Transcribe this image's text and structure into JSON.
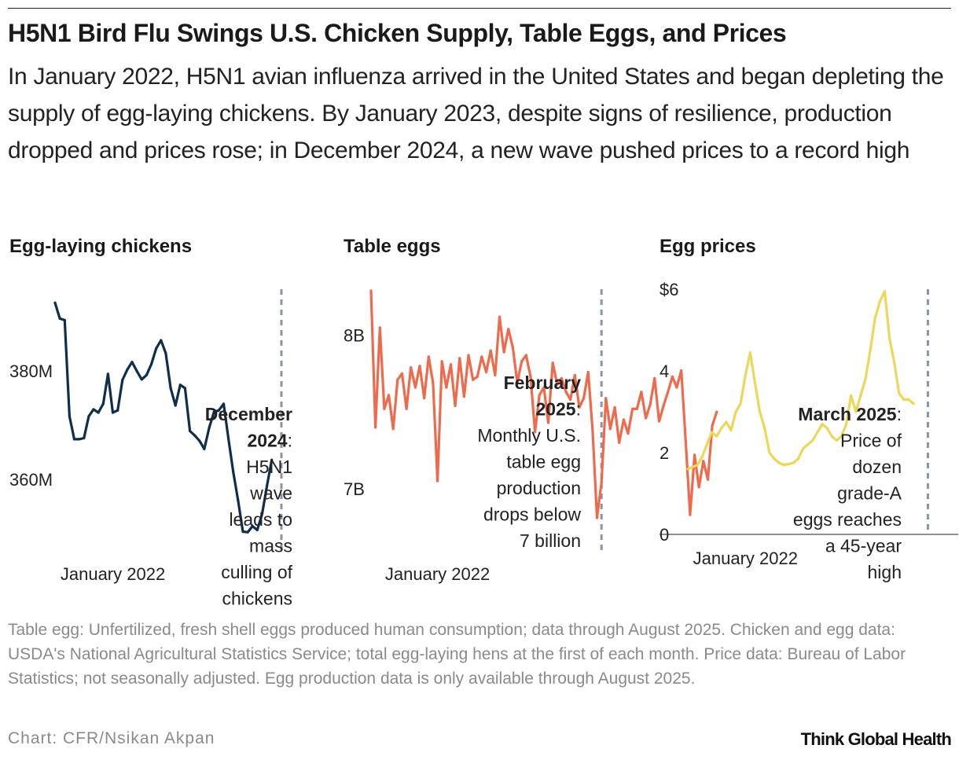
{
  "title": "H5N1 Bird Flu Swings U.S. Chicken Supply, Table Eggs, and Prices",
  "subtitle": "In January 2022, H5N1 avian influenza arrived in the United States and began depleting the supply of egg-laying chickens. By January 2023, despite signs of resilience, production dropped and prices rose; in December 2024, a new wave pushed prices to a record high",
  "footnote": "Table egg: Unfertilized, fresh shell eggs produced human consumption; data through August 2025. Chicken and egg data: USDA's National Agricultural Statistics Service; total egg-laying hens at the first of each month. Price data: Bureau of Labor Statistics; not seasonally adjusted. Egg production data is only available through August 2025.",
  "credit": "Chart: CFR/Nsikan Akpan",
  "brand": "Think Global Health",
  "colors": {
    "chickens": "#0f2d4d",
    "eggs": "#ef6a4c",
    "prices": "#edd75a",
    "marker": "#8a94a6"
  },
  "chart_data": [
    {
      "type": "line",
      "title": "Egg-laying chickens",
      "x_start": "2021-01",
      "x_end": "2025-08",
      "x_tick_label": "January 2022",
      "y_ticks": [
        {
          "value": 360,
          "label": "360M"
        },
        {
          "value": 380,
          "label": "380M"
        }
      ],
      "ylim": [
        347,
        395
      ],
      "series": [
        {
          "values": [
            392.5,
            389.6,
            389.3,
            371.6,
            367.4,
            367.4,
            367.6,
            371.6,
            372.9,
            372.3,
            373.9,
            379.4,
            372.3,
            372.7,
            378.3,
            380.2,
            381.6,
            379.9,
            378.4,
            379.2,
            381.2,
            384.1,
            385.6,
            383.2,
            376.8,
            373.6,
            377.4,
            376.8,
            368.9,
            368.1,
            367.1,
            365.6,
            369.5,
            372.4,
            372.7,
            373.9,
            367.5,
            361.4,
            356.2,
            350.4,
            350.3,
            351.4,
            350.7,
            353.7,
            358.8,
            363.6
          ]
        }
      ],
      "event_label": "December 2024",
      "annotation": {
        "bold": "December 2024",
        "lines": [
          "December",
          "2024:",
          "H5N1",
          "wave",
          "leads to",
          "mass",
          "culling of",
          "chickens"
        ]
      }
    },
    {
      "type": "line",
      "title": "Table eggs",
      "x_start": "2020-10",
      "x_end": "2025-08",
      "x_tick_label": "January 2022",
      "y_ticks": [
        {
          "value": 7,
          "label": "7B"
        },
        {
          "value": 8,
          "label": "8B"
        }
      ],
      "ylim": [
        6.6,
        8.3
      ],
      "series": [
        {
          "values": [
            8.29,
            7.4,
            8.05,
            7.52,
            7.61,
            7.39,
            7.71,
            7.75,
            7.52,
            7.79,
            7.66,
            7.8,
            7.59,
            7.86,
            7.69,
            7.05,
            7.83,
            7.66,
            7.81,
            7.54,
            7.85,
            7.6,
            7.87,
            7.71,
            7.73,
            7.86,
            7.76,
            7.9,
            7.74,
            8.12,
            7.89,
            8.04,
            7.92,
            7.69,
            7.83,
            7.87,
            7.73,
            7.37,
            7.61,
            7.66,
            7.43,
            7.82,
            7.68,
            7.72,
            7.63,
            7.58,
            7.74,
            7.53,
            7.59,
            7.76,
            7.38,
            6.81,
            7.04,
            7.59,
            7.39,
            7.53,
            7.3,
            7.45,
            7.36,
            7.52,
            7.52,
            7.63,
            7.46,
            7.55,
            7.72,
            7.44,
            7.54,
            7.63,
            7.73,
            7.66,
            7.77,
            7.31,
            6.83,
            7.22,
            7.01,
            7.18,
            7.06,
            7.41,
            7.5
          ]
        }
      ],
      "event_label": "February 2025",
      "annotation": {
        "bold": "February 2025",
        "lines": [
          "February",
          "2025:",
          "Monthly U.S.",
          "table egg",
          "production",
          "drops below",
          "7 billion"
        ]
      }
    },
    {
      "type": "line",
      "title": "Egg prices",
      "x_start": "2021-01",
      "x_end": "2025-08",
      "x_tick_label": "January 2022",
      "y_ticks": [
        {
          "value": 0,
          "label": "0"
        },
        {
          "value": 2,
          "label": "2"
        },
        {
          "value": 4,
          "label": "4"
        },
        {
          "value": 6,
          "label": "$6"
        }
      ],
      "ylim": [
        0,
        6
      ],
      "series": [
        {
          "values": [
            1.6,
            1.65,
            1.7,
            1.9,
            2.2,
            2.5,
            2.4,
            2.6,
            2.75,
            2.55,
            3.0,
            3.2,
            3.9,
            4.45,
            3.7,
            3.0,
            2.6,
            2.0,
            1.85,
            1.75,
            1.7,
            1.72,
            1.75,
            1.85,
            2.1,
            2.2,
            2.3,
            2.5,
            2.7,
            2.6,
            2.4,
            2.3,
            2.4,
            2.7,
            3.4,
            3.0,
            3.4,
            3.8,
            4.5,
            5.3,
            5.7,
            5.95,
            4.8,
            4.2,
            3.45,
            3.3,
            3.3,
            3.2
          ]
        }
      ],
      "event_label": "March 2025",
      "annotation": {
        "bold": "March 2025",
        "lines": [
          "March 2025:",
          "Price of",
          "dozen",
          "grade-A",
          "eggs reaches",
          "a 45-year",
          "high"
        ]
      }
    }
  ]
}
